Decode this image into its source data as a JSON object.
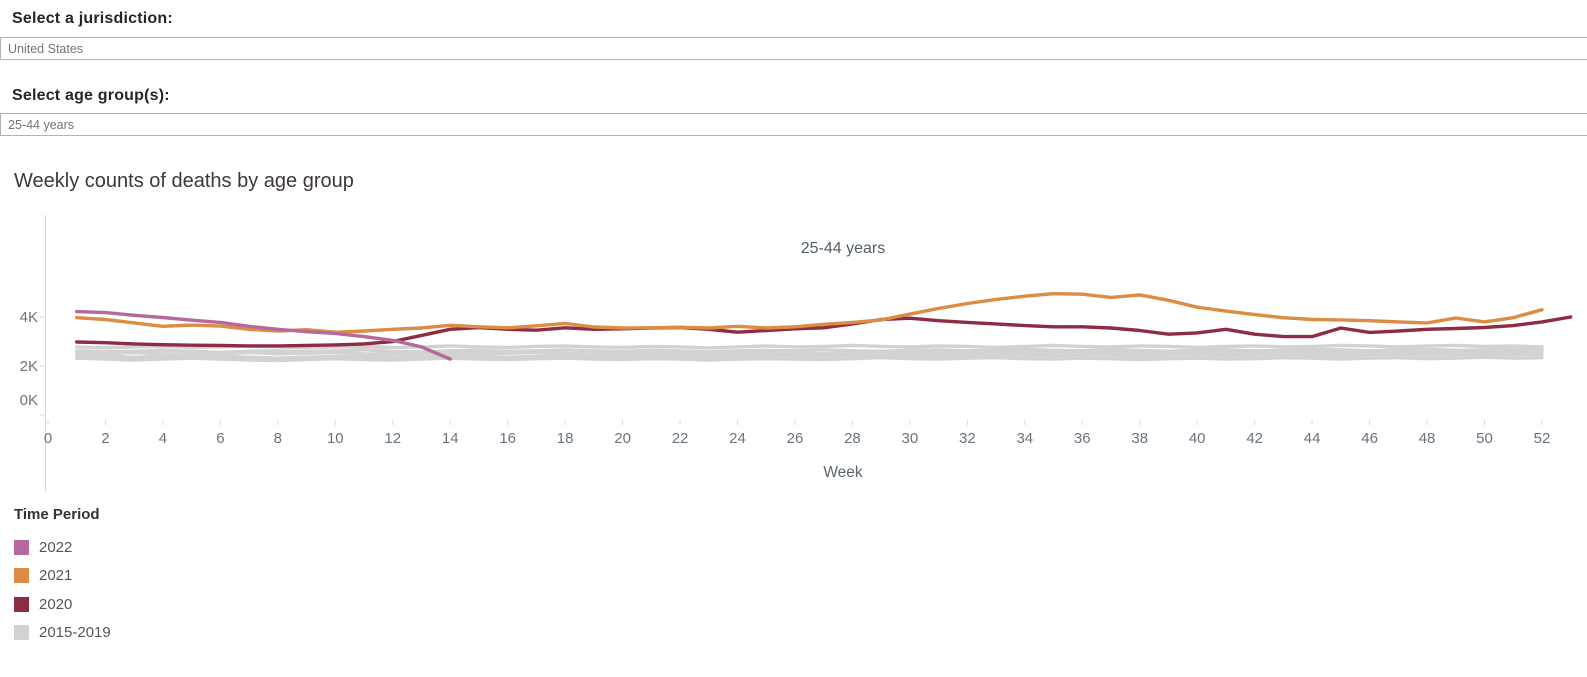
{
  "filters": {
    "jurisdiction_label": "Select a jurisdiction:",
    "jurisdiction_value": "United States",
    "age_label": "Select age group(s):",
    "age_value": "25-44 years"
  },
  "chart": {
    "title": "Weekly counts of deaths by age group"
  },
  "legend": {
    "title": "Time Period"
  },
  "chart_data": {
    "type": "line",
    "title": "Weekly counts of deaths by age group",
    "annotation": "25-44 years",
    "xlabel": "Week",
    "ylabel": "",
    "units": "weekly deaths, thousands",
    "xlim": [
      0,
      53.5
    ],
    "ylim": [
      0,
      5.5
    ],
    "grid": false,
    "legend_position": "bottom-left",
    "x_ticks": [
      0,
      2,
      4,
      6,
      8,
      10,
      12,
      14,
      16,
      18,
      20,
      22,
      24,
      26,
      28,
      30,
      32,
      34,
      36,
      38,
      40,
      42,
      44,
      46,
      48,
      50,
      52
    ],
    "y_ticks": [
      {
        "value": 0,
        "label": "0K"
      },
      {
        "value": 2,
        "label": "2K"
      },
      {
        "value": 4,
        "label": "4K"
      }
    ],
    "series": [
      {
        "name": "2022",
        "color": "#b5699f",
        "start_week": 1,
        "values": [
          4.22,
          4.18,
          4.07,
          3.98,
          3.87,
          3.78,
          3.62,
          3.5,
          3.4,
          3.33,
          3.2,
          3.05,
          2.78,
          2.28
        ]
      },
      {
        "name": "2021",
        "color": "#dc8c43",
        "start_week": 1,
        "values": [
          3.97,
          3.9,
          3.76,
          3.62,
          3.67,
          3.63,
          3.5,
          3.43,
          3.48,
          3.38,
          3.43,
          3.5,
          3.55,
          3.66,
          3.6,
          3.56,
          3.64,
          3.74,
          3.59,
          3.55,
          3.56,
          3.58,
          3.55,
          3.62,
          3.55,
          3.6,
          3.7,
          3.78,
          3.88,
          4.12,
          4.35,
          4.55,
          4.72,
          4.85,
          4.95,
          4.93,
          4.8,
          4.9,
          4.68,
          4.4,
          4.24,
          4.1,
          3.97,
          3.9,
          3.88,
          3.85,
          3.8,
          3.76,
          3.96,
          3.8,
          3.97,
          4.3
        ]
      },
      {
        "name": "2020",
        "color": "#8c2d44",
        "start_week": 1,
        "values": [
          2.98,
          2.95,
          2.9,
          2.87,
          2.85,
          2.84,
          2.82,
          2.82,
          2.84,
          2.86,
          2.9,
          3.0,
          3.25,
          3.5,
          3.57,
          3.5,
          3.46,
          3.56,
          3.5,
          3.52,
          3.55,
          3.57,
          3.5,
          3.38,
          3.45,
          3.52,
          3.56,
          3.72,
          3.9,
          3.95,
          3.85,
          3.78,
          3.72,
          3.65,
          3.6,
          3.6,
          3.55,
          3.45,
          3.3,
          3.35,
          3.5,
          3.3,
          3.2,
          3.2,
          3.55,
          3.37,
          3.43,
          3.5,
          3.53,
          3.57,
          3.65,
          3.8,
          4.0
        ]
      },
      {
        "name": "2015-2019",
        "color": "#d2d2d2",
        "start_week": 1,
        "lines": [
          [
            2.78,
            2.74,
            2.78,
            2.8,
            2.76,
            2.78,
            2.82,
            2.78,
            2.74,
            2.78,
            2.8,
            2.76,
            2.78,
            2.82,
            2.78,
            2.76,
            2.8,
            2.82,
            2.78,
            2.76,
            2.8,
            2.78,
            2.74,
            2.78,
            2.82,
            2.78,
            2.8,
            2.84,
            2.8,
            2.78,
            2.82,
            2.8,
            2.76,
            2.8,
            2.84,
            2.8,
            2.78,
            2.82,
            2.8,
            2.76,
            2.8,
            2.82,
            2.78,
            2.8,
            2.84,
            2.82,
            2.78,
            2.82,
            2.84,
            2.8,
            2.82,
            2.78
          ],
          [
            2.62,
            2.58,
            2.6,
            2.64,
            2.6,
            2.56,
            2.6,
            2.62,
            2.58,
            2.62,
            2.66,
            2.6,
            2.58,
            2.62,
            2.64,
            2.6,
            2.62,
            2.66,
            2.62,
            2.6,
            2.64,
            2.62,
            2.58,
            2.62,
            2.64,
            2.62,
            2.66,
            2.62,
            2.6,
            2.64,
            2.66,
            2.62,
            2.64,
            2.68,
            2.64,
            2.62,
            2.66,
            2.64,
            2.6,
            2.64,
            2.66,
            2.62,
            2.64,
            2.68,
            2.66,
            2.62,
            2.66,
            2.68,
            2.64,
            2.66,
            2.7,
            2.66
          ],
          [
            2.52,
            2.5,
            2.55,
            2.5,
            2.46,
            2.5,
            2.55,
            2.5,
            2.52,
            2.56,
            2.5,
            2.48,
            2.52,
            2.55,
            2.5,
            2.52,
            2.56,
            2.52,
            2.48,
            2.52,
            2.55,
            2.52,
            2.5,
            2.54,
            2.56,
            2.52,
            2.5,
            2.54,
            2.58,
            2.54,
            2.52,
            2.56,
            2.58,
            2.54,
            2.56,
            2.6,
            2.56,
            2.54,
            2.58,
            2.56,
            2.52,
            2.56,
            2.58,
            2.54,
            2.56,
            2.6,
            2.58,
            2.56,
            2.6,
            2.62,
            2.58,
            2.6
          ],
          [
            2.44,
            2.4,
            2.36,
            2.4,
            2.44,
            2.4,
            2.36,
            2.32,
            2.36,
            2.4,
            2.38,
            2.34,
            2.38,
            2.42,
            2.38,
            2.36,
            2.4,
            2.44,
            2.4,
            2.38,
            2.42,
            2.4,
            2.36,
            2.4,
            2.44,
            2.42,
            2.4,
            2.44,
            2.46,
            2.42,
            2.4,
            2.44,
            2.46,
            2.44,
            2.42,
            2.46,
            2.44,
            2.4,
            2.44,
            2.46,
            2.42,
            2.44,
            2.48,
            2.44,
            2.42,
            2.46,
            2.48,
            2.44,
            2.46,
            2.5,
            2.46,
            2.48
          ],
          [
            2.32,
            2.28,
            2.24,
            2.28,
            2.32,
            2.28,
            2.24,
            2.22,
            2.26,
            2.3,
            2.26,
            2.24,
            2.28,
            2.32,
            2.28,
            2.26,
            2.3,
            2.32,
            2.28,
            2.26,
            2.3,
            2.28,
            2.24,
            2.28,
            2.3,
            2.28,
            2.26,
            2.3,
            2.34,
            2.3,
            2.28,
            2.32,
            2.34,
            2.3,
            2.28,
            2.32,
            2.3,
            2.26,
            2.3,
            2.32,
            2.28,
            2.3,
            2.34,
            2.32,
            2.28,
            2.32,
            2.34,
            2.3,
            2.32,
            2.36,
            2.32,
            2.34
          ]
        ]
      }
    ]
  }
}
